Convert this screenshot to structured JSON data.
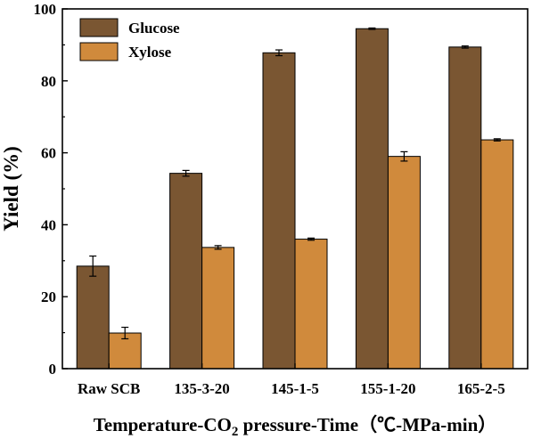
{
  "chart_data": {
    "type": "bar",
    "categories": [
      "Raw SCB",
      "135-3-20",
      "145-1-5",
      "155-1-20",
      "165-2-5"
    ],
    "series": [
      {
        "name": "Glucose",
        "color": "#7a5632",
        "values": [
          28.5,
          54.3,
          87.8,
          94.5,
          89.4
        ],
        "errors": [
          2.8,
          0.8,
          0.8,
          0.2,
          0.3
        ]
      },
      {
        "name": "Xylose",
        "color": "#d08a3c",
        "values": [
          9.9,
          33.7,
          36.0,
          59.0,
          63.6
        ],
        "errors": [
          1.6,
          0.5,
          0.3,
          1.3,
          0.3
        ]
      }
    ],
    "ylabel": "Yield (%)",
    "xlabel": {
      "pre": "Temperature-CO",
      "sub": "2",
      "post": " pressure-Time（℃-MPa-min）"
    },
    "ylim": [
      0,
      100
    ],
    "yticks": [
      0,
      20,
      40,
      60,
      80,
      100
    ],
    "legend_position": "top-left",
    "grid": false
  }
}
